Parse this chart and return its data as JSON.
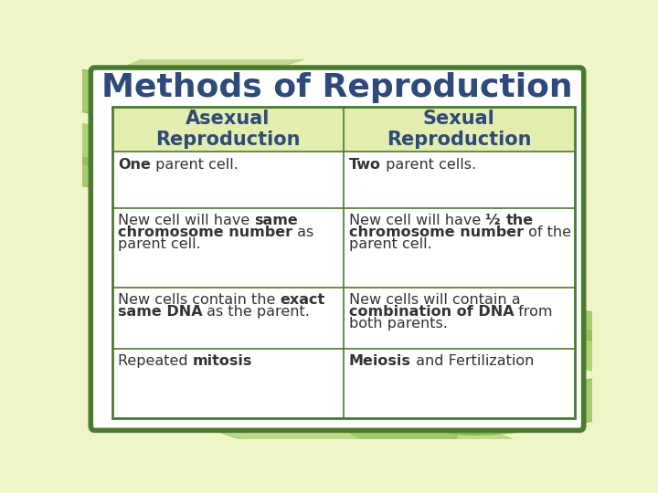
{
  "title": "Methods of Reproduction",
  "title_color": "#2d4a7a",
  "title_fontsize": 26,
  "bg_color": "#f0f5c8",
  "border_color": "#4a7a30",
  "header_text_color": "#2d4a7a",
  "body_text_color": "#333333",
  "col1_header": "Asexual\nReproduction",
  "col2_header": "Sexual\nReproduction",
  "header_fontsize": 15,
  "body_fontsize": 11.5,
  "row1_col1": [
    [
      "One",
      true
    ],
    [
      " parent cell.",
      false
    ]
  ],
  "row1_col2": [
    [
      "Two",
      true
    ],
    [
      " parent cells.",
      false
    ]
  ],
  "row2_col1": [
    [
      "New cell will have ",
      false
    ],
    [
      "same",
      true
    ],
    [
      "\n",
      false
    ],
    [
      "chromosome number",
      true
    ],
    [
      " as",
      false
    ],
    [
      "\n",
      false
    ],
    [
      "parent cell.",
      false
    ]
  ],
  "row2_col2": [
    [
      "New cell will have ",
      false
    ],
    [
      "½ ",
      true
    ],
    [
      "the",
      true
    ],
    [
      "\n",
      false
    ],
    [
      "chromosome number",
      true
    ],
    [
      " of the",
      false
    ],
    [
      "\n",
      false
    ],
    [
      "parent cell.",
      false
    ]
  ],
  "row3_col1": [
    [
      "New cells contain the ",
      false
    ],
    [
      "exact",
      true
    ],
    [
      "\n",
      false
    ],
    [
      "same DNA",
      true
    ],
    [
      " as the parent.",
      false
    ]
  ],
  "row3_col2": [
    [
      "New cells will contain a",
      false
    ],
    [
      "\n",
      false
    ],
    [
      "combination of DNA",
      true
    ],
    [
      " from",
      false
    ],
    [
      "\n",
      false
    ],
    [
      "both parents.",
      false
    ]
  ],
  "row4_col1": [
    [
      "Repeated ",
      false
    ],
    [
      "mitosis",
      true
    ]
  ],
  "row4_col2": [
    [
      "Meiosis",
      true
    ],
    [
      " and Fertilization",
      false
    ]
  ]
}
